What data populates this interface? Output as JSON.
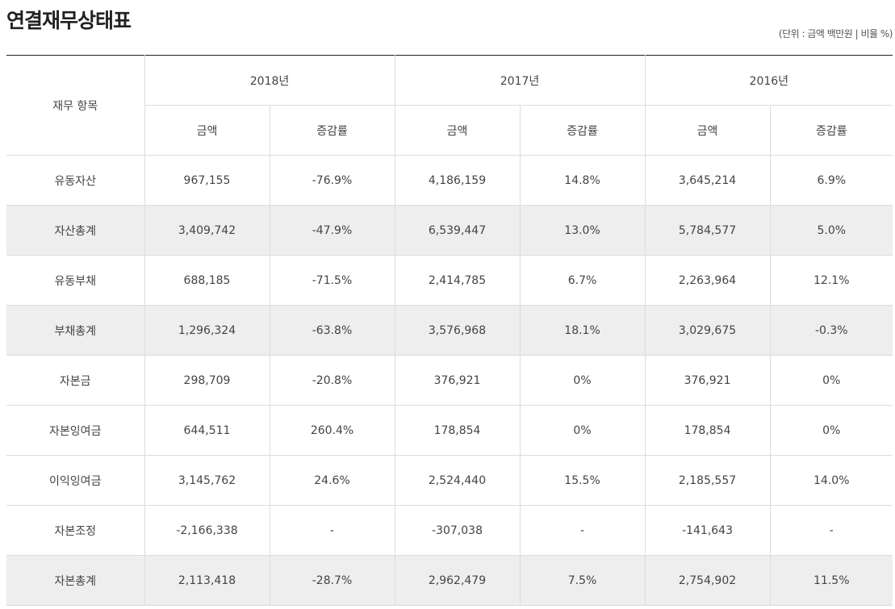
{
  "title": "연결재무상태표",
  "unit_note": "(단위 : 금액 백만원 | 비율 %)",
  "header": {
    "item_label": "재무 항목",
    "years": [
      "2018년",
      "2017년",
      "2016년"
    ],
    "sub_amount": "금액",
    "sub_rate": "증감률"
  },
  "rows": [
    {
      "name": "유동자산",
      "shade": false,
      "values": [
        "967,155",
        "-76.9%",
        "4,186,159",
        "14.8%",
        "3,645,214",
        "6.9%"
      ]
    },
    {
      "name": "자산총계",
      "shade": true,
      "values": [
        "3,409,742",
        "-47.9%",
        "6,539,447",
        "13.0%",
        "5,784,577",
        "5.0%"
      ]
    },
    {
      "name": "유동부채",
      "shade": false,
      "values": [
        "688,185",
        "-71.5%",
        "2,414,785",
        "6.7%",
        "2,263,964",
        "12.1%"
      ]
    },
    {
      "name": "부채총계",
      "shade": true,
      "values": [
        "1,296,324",
        "-63.8%",
        "3,576,968",
        "18.1%",
        "3,029,675",
        "-0.3%"
      ]
    },
    {
      "name": "자본금",
      "shade": false,
      "values": [
        "298,709",
        "-20.8%",
        "376,921",
        "0%",
        "376,921",
        "0%"
      ]
    },
    {
      "name": "자본잉여금",
      "shade": false,
      "values": [
        "644,511",
        "260.4%",
        "178,854",
        "0%",
        "178,854",
        "0%"
      ]
    },
    {
      "name": "이익잉여금",
      "shade": false,
      "values": [
        "3,145,762",
        "24.6%",
        "2,524,440",
        "15.5%",
        "2,185,557",
        "14.0%"
      ]
    },
    {
      "name": "자본조정",
      "shade": false,
      "values": [
        "-2,166,338",
        "-",
        "-307,038",
        "-",
        "-141,643",
        "-"
      ]
    },
    {
      "name": "자본총계",
      "shade": true,
      "values": [
        "2,113,418",
        "-28.7%",
        "2,962,479",
        "7.5%",
        "2,754,902",
        "11.5%"
      ]
    }
  ]
}
